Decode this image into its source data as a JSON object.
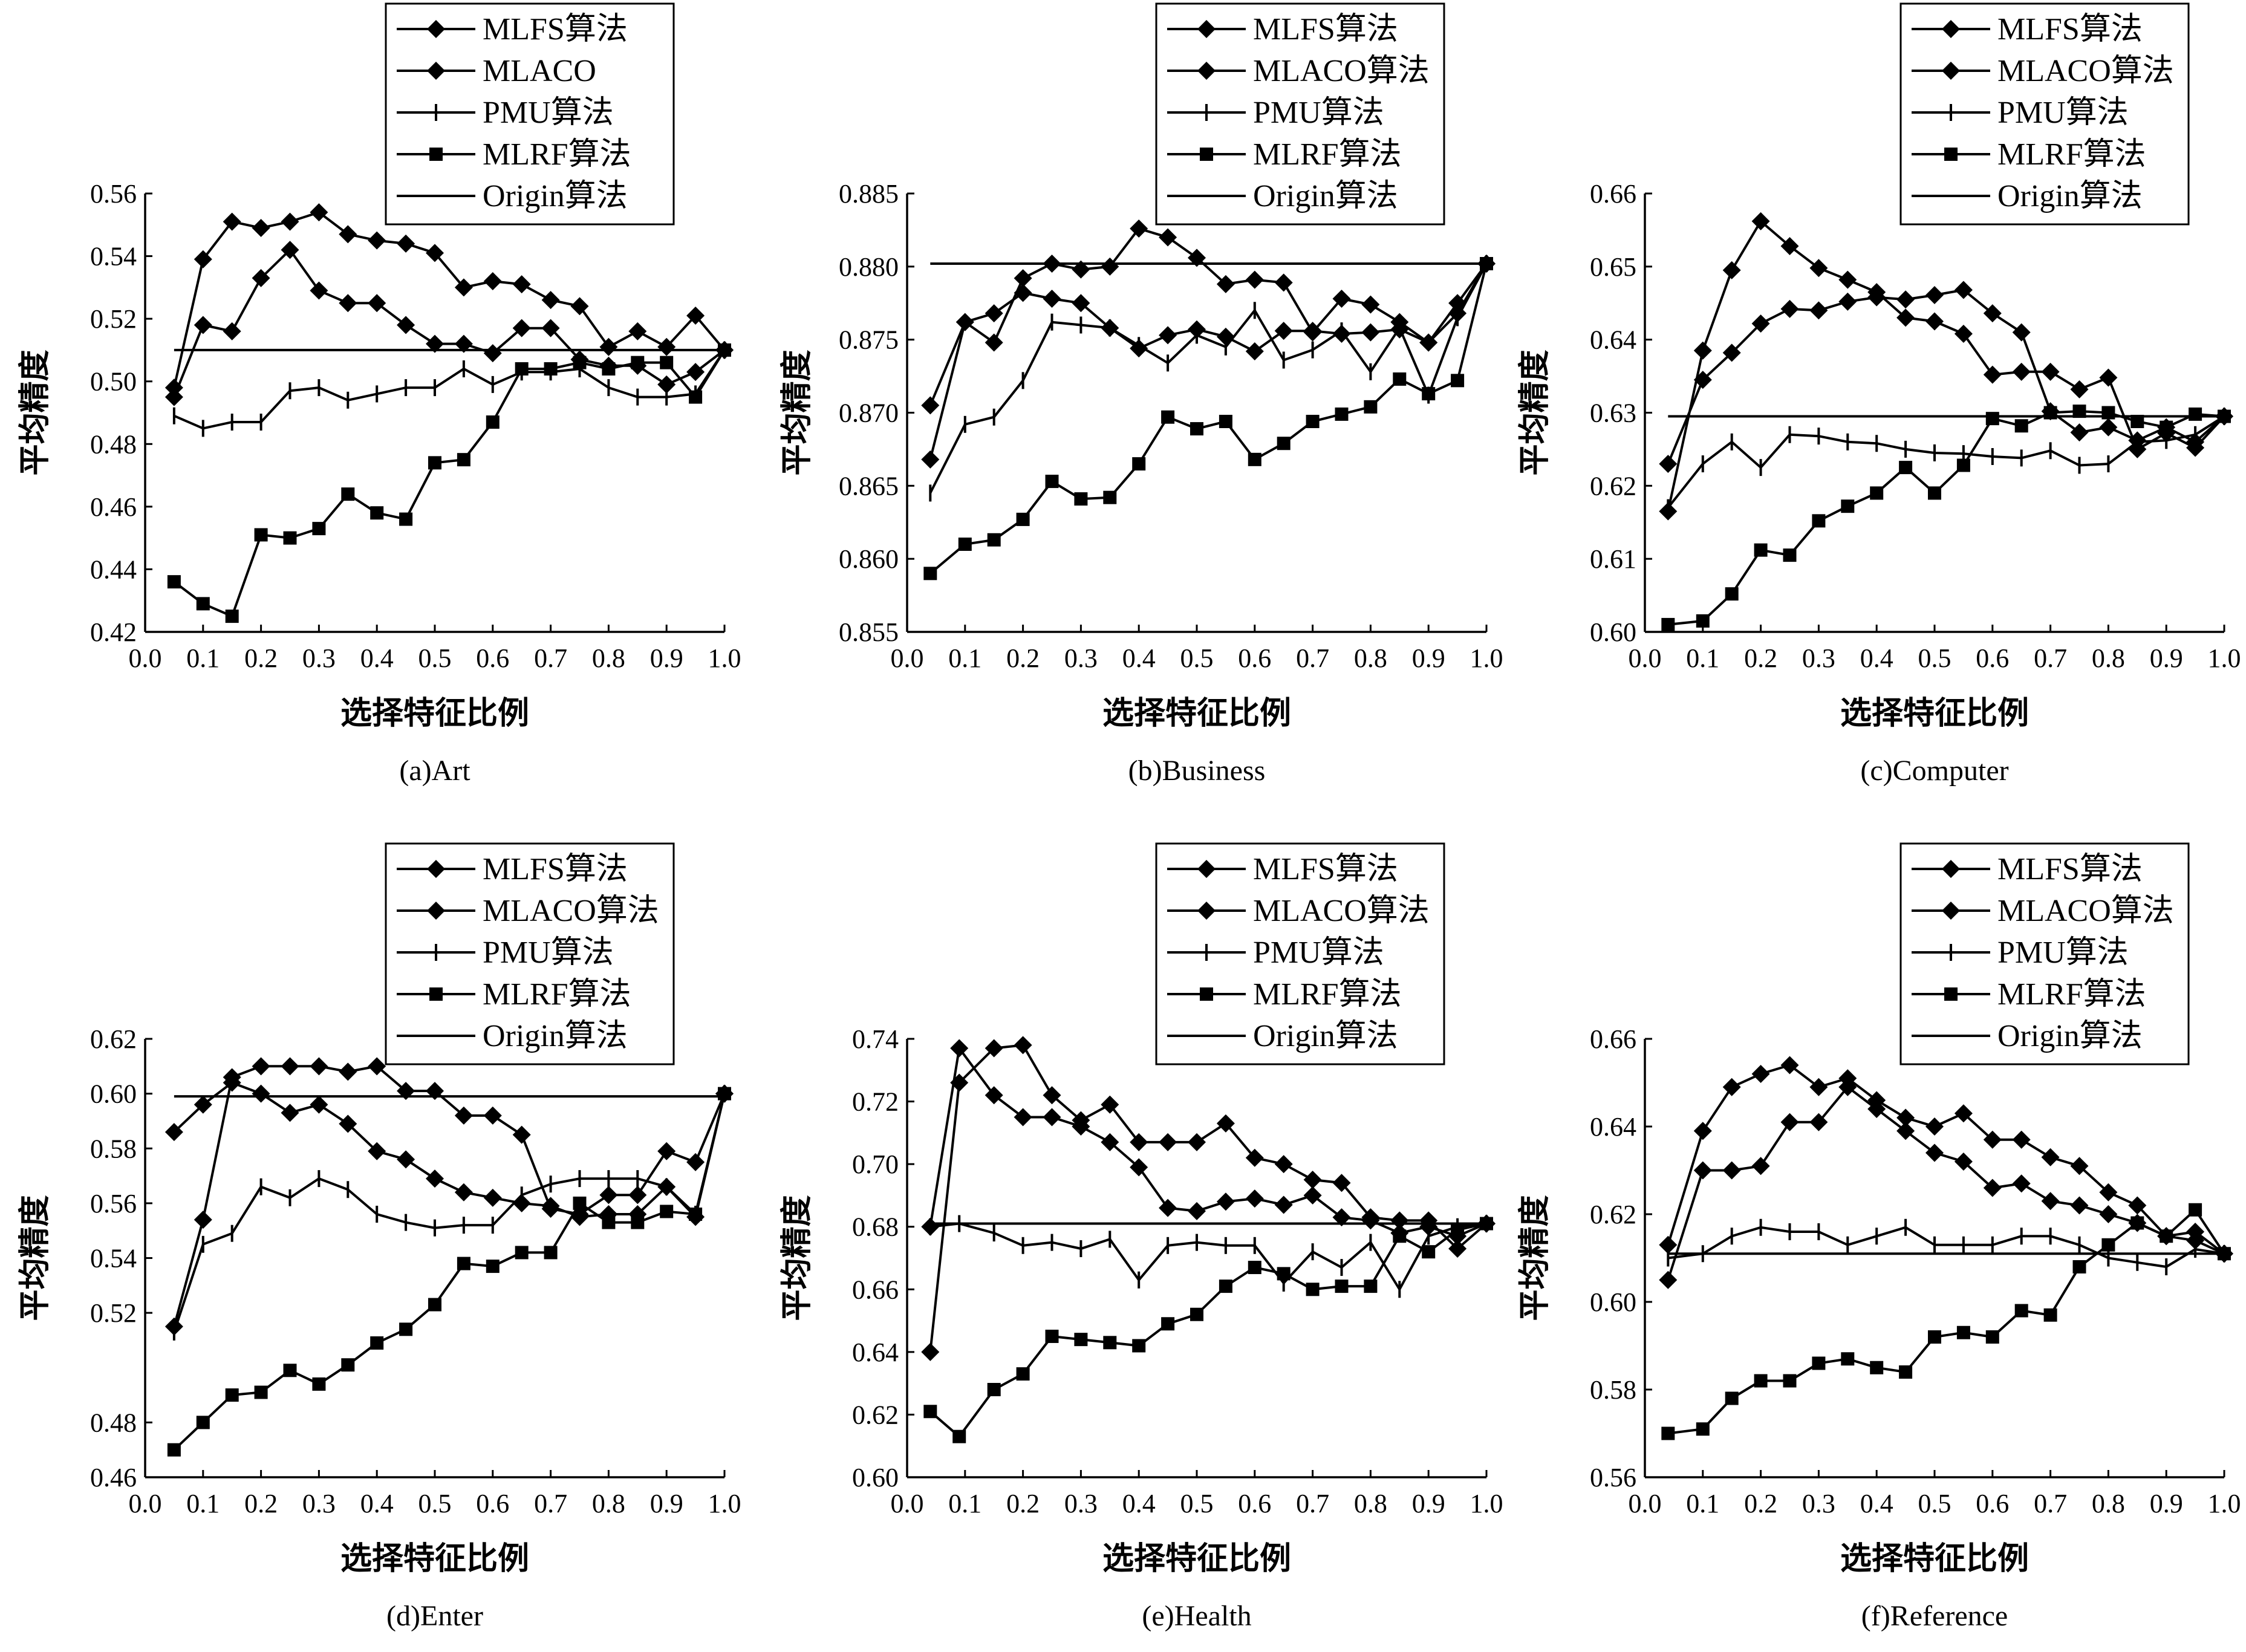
{
  "figure": {
    "ylabel": "平均精度",
    "xlabel": "选择特征比例"
  },
  "chart_data": [
    {
      "type": "line",
      "caption": "(a)Art",
      "xlabel": "选择特征比例",
      "ylabel": "平均精度",
      "xlim": [
        0.0,
        1.0
      ],
      "ylim": [
        0.42,
        0.56
      ],
      "xticks": [
        "0.0",
        "0.1",
        "0.2",
        "0.3",
        "0.4",
        "0.5",
        "0.6",
        "0.7",
        "0.8",
        "0.9",
        "1.0"
      ],
      "yticks": [
        "0.42",
        "0.44",
        "0.46",
        "0.48",
        "0.50",
        "0.52",
        "0.54",
        "0.56"
      ],
      "legend_position": "top-right",
      "x": [
        0.05,
        0.1,
        0.15,
        0.2,
        0.25,
        0.3,
        0.35,
        0.4,
        0.45,
        0.5,
        0.55,
        0.6,
        0.65,
        0.7,
        0.75,
        0.8,
        0.85,
        0.9,
        0.95,
        1.0
      ],
      "series": [
        {
          "name": "MLFS算法",
          "marker": "diamond",
          "values": [
            0.498,
            0.539,
            0.551,
            0.549,
            0.551,
            0.554,
            0.547,
            0.545,
            0.544,
            0.541,
            0.53,
            0.532,
            0.531,
            0.526,
            0.524,
            0.511,
            0.516,
            0.511,
            0.521,
            0.51
          ]
        },
        {
          "name": "MLACO",
          "marker": "diamond",
          "values": [
            0.495,
            0.518,
            0.516,
            0.533,
            0.542,
            0.529,
            0.525,
            0.525,
            0.518,
            0.512,
            0.512,
            0.509,
            0.517,
            0.517,
            0.507,
            0.505,
            0.505,
            0.499,
            0.503,
            0.51
          ]
        },
        {
          "name": "PMU算法",
          "marker": "plus",
          "values": [
            0.489,
            0.485,
            0.487,
            0.487,
            0.497,
            0.498,
            0.494,
            0.496,
            0.498,
            0.498,
            0.504,
            0.499,
            0.503,
            0.503,
            0.504,
            0.498,
            0.495,
            0.495,
            0.496,
            0.51
          ]
        },
        {
          "name": "MLRF算法",
          "marker": "square",
          "values": [
            0.436,
            0.429,
            0.425,
            0.451,
            0.45,
            0.453,
            0.464,
            0.458,
            0.456,
            0.474,
            0.475,
            0.487,
            0.504,
            0.504,
            0.506,
            0.504,
            0.506,
            0.506,
            0.495,
            0.51
          ]
        },
        {
          "name": "Origin算法",
          "marker": "none",
          "constant": 0.51
        }
      ]
    },
    {
      "type": "line",
      "caption": "(b)Business",
      "xlabel": "选择特征比例",
      "ylabel": "平均精度",
      "xlim": [
        0.0,
        1.0
      ],
      "ylim": [
        0.855,
        0.885
      ],
      "xticks": [
        "0.0",
        "0.1",
        "0.2",
        "0.3",
        "0.4",
        "0.5",
        "0.6",
        "0.7",
        "0.8",
        "0.9",
        "1.0"
      ],
      "yticks": [
        "0.855",
        "0.860",
        "0.865",
        "0.870",
        "0.875",
        "0.880",
        "0.885"
      ],
      "legend_position": "top-right",
      "x": [
        0.04,
        0.1,
        0.15,
        0.2,
        0.25,
        0.3,
        0.35,
        0.4,
        0.45,
        0.5,
        0.55,
        0.6,
        0.65,
        0.7,
        0.75,
        0.8,
        0.85,
        0.9,
        0.95,
        1.0
      ],
      "series": [
        {
          "name": "MLFS算法",
          "marker": "diamond",
          "values": [
            0.8668,
            0.8762,
            0.8748,
            0.8792,
            0.8802,
            0.8798,
            0.88,
            0.8826,
            0.882,
            0.8806,
            0.8788,
            0.8791,
            0.8789,
            0.8755,
            0.8778,
            0.8774,
            0.8762,
            0.8748,
            0.8775,
            0.8802
          ]
        },
        {
          "name": "MLACO算法",
          "marker": "diamond",
          "values": [
            0.8705,
            0.8762,
            0.8768,
            0.8782,
            0.8778,
            0.8775,
            0.8758,
            0.8744,
            0.8753,
            0.8757,
            0.8752,
            0.8742,
            0.8756,
            0.8756,
            0.8754,
            0.8755,
            0.8757,
            0.8748,
            0.8768,
            0.8802
          ]
        },
        {
          "name": "PMU算法",
          "marker": "plus",
          "values": [
            0.8645,
            0.8692,
            0.8697,
            0.8722,
            0.8762,
            0.876,
            0.8758,
            0.8746,
            0.8734,
            0.8753,
            0.8745,
            0.877,
            0.8736,
            0.8743,
            0.8756,
            0.8728,
            0.8758,
            0.8712,
            0.8765,
            0.8802
          ]
        },
        {
          "name": "MLRF算法",
          "marker": "square",
          "values": [
            0.859,
            0.861,
            0.8613,
            0.8627,
            0.8653,
            0.8641,
            0.8642,
            0.8665,
            0.8697,
            0.8689,
            0.8694,
            0.8668,
            0.8679,
            0.8694,
            0.8699,
            0.8704,
            0.8723,
            0.8713,
            0.8722,
            0.8802
          ]
        },
        {
          "name": "Origin算法",
          "marker": "none",
          "constant": 0.8802
        }
      ]
    },
    {
      "type": "line",
      "caption": "(c)Computer",
      "xlabel": "选择特征比例",
      "ylabel": "平均精度",
      "xlim": [
        0.0,
        1.0
      ],
      "ylim": [
        0.6,
        0.66
      ],
      "xticks": [
        "0.0",
        "0.1",
        "0.2",
        "0.3",
        "0.4",
        "0.5",
        "0.6",
        "0.7",
        "0.8",
        "0.9",
        "1.0"
      ],
      "yticks": [
        "0.60",
        "0.61",
        "0.62",
        "0.63",
        "0.64",
        "0.65",
        "0.66"
      ],
      "legend_position": "top-right",
      "x": [
        0.04,
        0.1,
        0.15,
        0.2,
        0.25,
        0.3,
        0.35,
        0.4,
        0.45,
        0.5,
        0.55,
        0.6,
        0.65,
        0.7,
        0.75,
        0.8,
        0.85,
        0.9,
        0.95,
        1.0
      ],
      "series": [
        {
          "name": "MLFS算法",
          "marker": "diamond",
          "values": [
            0.6165,
            0.6385,
            0.6495,
            0.6562,
            0.6528,
            0.6498,
            0.6482,
            0.6465,
            0.643,
            0.6425,
            0.6408,
            0.6352,
            0.6356,
            0.6356,
            0.6332,
            0.6348,
            0.625,
            0.6272,
            0.6252,
            0.6295
          ]
        },
        {
          "name": "MLACO算法",
          "marker": "diamond",
          "values": [
            0.623,
            0.6345,
            0.6382,
            0.6422,
            0.6442,
            0.644,
            0.6452,
            0.6458,
            0.6455,
            0.6461,
            0.6468,
            0.6436,
            0.641,
            0.6302,
            0.6273,
            0.628,
            0.6262,
            0.628,
            0.626,
            0.6295
          ]
        },
        {
          "name": "PMU算法",
          "marker": "plus",
          "values": [
            0.617,
            0.623,
            0.626,
            0.6225,
            0.627,
            0.6268,
            0.626,
            0.6258,
            0.625,
            0.6245,
            0.6244,
            0.624,
            0.6238,
            0.6248,
            0.6228,
            0.623,
            0.626,
            0.6262,
            0.627,
            0.6295
          ]
        },
        {
          "name": "MLRF算法",
          "marker": "square",
          "values": [
            0.601,
            0.6015,
            0.6052,
            0.6112,
            0.6105,
            0.6152,
            0.6172,
            0.619,
            0.6225,
            0.619,
            0.6228,
            0.6292,
            0.6282,
            0.63,
            0.6302,
            0.63,
            0.6288,
            0.628,
            0.6298,
            0.6295
          ]
        },
        {
          "name": "Origin算法",
          "marker": "none",
          "constant": 0.6295
        }
      ]
    },
    {
      "type": "line",
      "caption": "(d)Enter",
      "xlabel": "选择特征比例",
      "ylabel": "平均精度",
      "xlim": [
        0.0,
        1.0
      ],
      "ylim": [
        0.46,
        0.62
      ],
      "xticks": [
        "0.0",
        "0.1",
        "0.2",
        "0.3",
        "0.4",
        "0.5",
        "0.6",
        "0.7",
        "0.8",
        "0.9",
        "1.0"
      ],
      "yticks": [
        "0.46",
        "0.48",
        "0.52",
        "0.54",
        "0.56",
        "0.58",
        "0.60",
        "0.62"
      ],
      "legend_position": "top-right",
      "x": [
        0.05,
        0.1,
        0.15,
        0.2,
        0.25,
        0.3,
        0.35,
        0.4,
        0.45,
        0.5,
        0.55,
        0.6,
        0.65,
        0.7,
        0.75,
        0.8,
        0.85,
        0.9,
        0.95,
        1.0
      ],
      "series": [
        {
          "name": "MLFS算法",
          "marker": "diamond",
          "values": [
            0.515,
            0.554,
            0.606,
            0.61,
            0.61,
            0.61,
            0.608,
            0.61,
            0.601,
            0.601,
            0.592,
            0.592,
            0.585,
            0.558,
            0.556,
            0.563,
            0.563,
            0.579,
            0.575,
            0.6
          ]
        },
        {
          "name": "MLACO算法",
          "marker": "diamond",
          "values": [
            0.586,
            0.596,
            0.604,
            0.6,
            0.593,
            0.596,
            0.589,
            0.579,
            0.576,
            0.569,
            0.564,
            0.562,
            0.56,
            0.559,
            0.555,
            0.556,
            0.556,
            0.566,
            0.555,
            0.6
          ]
        },
        {
          "name": "PMU算法",
          "marker": "plus",
          "values": [
            0.513,
            0.545,
            0.549,
            0.566,
            0.562,
            0.569,
            0.565,
            0.556,
            0.553,
            0.551,
            0.552,
            0.552,
            0.563,
            0.567,
            0.569,
            0.569,
            0.569,
            0.566,
            0.556,
            0.6
          ]
        },
        {
          "name": "MLRF算法",
          "marker": "square",
          "values": [
            0.47,
            0.48,
            0.49,
            0.491,
            0.499,
            0.494,
            0.501,
            0.509,
            0.514,
            0.523,
            0.538,
            0.537,
            0.542,
            0.542,
            0.56,
            0.553,
            0.553,
            0.557,
            0.556,
            0.6
          ]
        },
        {
          "name": "Origin算法",
          "marker": "none",
          "constant": 0.599
        }
      ]
    },
    {
      "type": "line",
      "caption": "(e)Health",
      "xlabel": "选择特征比例",
      "ylabel": "平均精度",
      "xlim": [
        0.0,
        1.0
      ],
      "ylim": [
        0.6,
        0.74
      ],
      "xticks": [
        "0.0",
        "0.1",
        "0.2",
        "0.3",
        "0.4",
        "0.5",
        "0.6",
        "0.7",
        "0.8",
        "0.9",
        "1.0"
      ],
      "yticks": [
        "0.60",
        "0.62",
        "0.64",
        "0.66",
        "0.68",
        "0.70",
        "0.72",
        "0.74"
      ],
      "legend_position": "top-right",
      "x": [
        0.04,
        0.09,
        0.15,
        0.2,
        0.25,
        0.3,
        0.35,
        0.4,
        0.45,
        0.5,
        0.55,
        0.6,
        0.65,
        0.7,
        0.75,
        0.8,
        0.85,
        0.9,
        0.95,
        1.0
      ],
      "series": [
        {
          "name": "MLFS算法",
          "marker": "diamond",
          "values": [
            0.64,
            0.726,
            0.737,
            0.738,
            0.722,
            0.714,
            0.719,
            0.707,
            0.707,
            0.707,
            0.713,
            0.702,
            0.7,
            0.695,
            0.694,
            0.683,
            0.682,
            0.682,
            0.673,
            0.681
          ]
        },
        {
          "name": "MLACO算法",
          "marker": "diamond",
          "values": [
            0.68,
            0.737,
            0.722,
            0.715,
            0.715,
            0.712,
            0.707,
            0.699,
            0.686,
            0.685,
            0.688,
            0.689,
            0.687,
            0.69,
            0.683,
            0.682,
            0.678,
            0.68,
            0.677,
            0.681
          ]
        },
        {
          "name": "PMU算法",
          "marker": "plus",
          "values": [
            0.68,
            0.681,
            0.678,
            0.674,
            0.675,
            0.673,
            0.676,
            0.663,
            0.674,
            0.675,
            0.674,
            0.674,
            0.662,
            0.672,
            0.667,
            0.675,
            0.66,
            0.677,
            0.68,
            0.681
          ]
        },
        {
          "name": "MLRF算法",
          "marker": "square",
          "values": [
            0.621,
            0.613,
            0.628,
            0.633,
            0.645,
            0.644,
            0.643,
            0.642,
            0.649,
            0.652,
            0.661,
            0.667,
            0.665,
            0.66,
            0.661,
            0.661,
            0.677,
            0.672,
            0.679,
            0.681
          ]
        },
        {
          "name": "Origin算法",
          "marker": "none",
          "constant": 0.681
        }
      ]
    },
    {
      "type": "line",
      "caption": "(f)Reference",
      "xlabel": "选择特征比例",
      "ylabel": "平均精度",
      "xlim": [
        0.0,
        1.0
      ],
      "ylim": [
        0.56,
        0.66
      ],
      "xticks": [
        "0.0",
        "0.1",
        "0.2",
        "0.3",
        "0.4",
        "0.5",
        "0.6",
        "0.7",
        "0.8",
        "0.9",
        "1.0"
      ],
      "yticks": [
        "0.56",
        "0.58",
        "0.60",
        "0.62",
        "0.64",
        "0.66"
      ],
      "legend_position": "top-right",
      "x": [
        0.04,
        0.1,
        0.15,
        0.2,
        0.25,
        0.3,
        0.35,
        0.4,
        0.45,
        0.5,
        0.55,
        0.6,
        0.65,
        0.7,
        0.75,
        0.8,
        0.85,
        0.9,
        0.95,
        1.0
      ],
      "series": [
        {
          "name": "MLFS算法",
          "marker": "diamond",
          "values": [
            0.613,
            0.639,
            0.649,
            0.652,
            0.654,
            0.649,
            0.651,
            0.646,
            0.642,
            0.64,
            0.643,
            0.637,
            0.637,
            0.633,
            0.631,
            0.625,
            0.622,
            0.615,
            0.614,
            0.611
          ]
        },
        {
          "name": "MLACO算法",
          "marker": "diamond",
          "values": [
            0.605,
            0.63,
            0.63,
            0.631,
            0.641,
            0.641,
            0.649,
            0.644,
            0.639,
            0.634,
            0.632,
            0.626,
            0.627,
            0.623,
            0.622,
            0.62,
            0.618,
            0.615,
            0.616,
            0.611
          ]
        },
        {
          "name": "PMU算法",
          "marker": "plus",
          "values": [
            0.61,
            0.611,
            0.615,
            0.617,
            0.616,
            0.616,
            0.613,
            0.615,
            0.617,
            0.613,
            0.613,
            0.613,
            0.615,
            0.615,
            0.613,
            0.61,
            0.609,
            0.608,
            0.612,
            0.611
          ]
        },
        {
          "name": "MLRF算法",
          "marker": "square",
          "values": [
            0.57,
            0.571,
            0.578,
            0.582,
            0.582,
            0.586,
            0.587,
            0.585,
            0.584,
            0.592,
            0.593,
            0.592,
            0.598,
            0.597,
            0.608,
            0.613,
            0.618,
            0.615,
            0.621,
            0.611
          ]
        },
        {
          "name": "Origin算法",
          "marker": "none",
          "constant": 0.611
        }
      ]
    }
  ]
}
